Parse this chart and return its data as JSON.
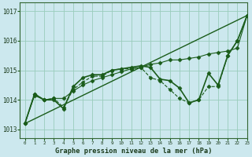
{
  "title": "Graphe pression niveau de la mer (hPa)",
  "xlim": [
    -0.5,
    23
  ],
  "ylim": [
    1012.7,
    1017.3
  ],
  "yticks": [
    1013,
    1014,
    1015,
    1016,
    1017
  ],
  "xticks": [
    0,
    1,
    2,
    3,
    4,
    5,
    6,
    7,
    8,
    9,
    10,
    11,
    12,
    13,
    14,
    15,
    16,
    17,
    18,
    19,
    20,
    21,
    22,
    23
  ],
  "bg_color": "#cce8ee",
  "grid_color": "#99ccbb",
  "line_color": "#1a5c1a",
  "series": [
    {
      "x": [
        0,
        23
      ],
      "y": [
        1013.2,
        1016.85
      ],
      "lw": 1.0,
      "ls": "-",
      "marker": null
    },
    {
      "x": [
        0,
        1,
        2,
        3,
        4,
        5,
        6,
        7,
        8,
        9,
        10,
        11,
        12,
        13,
        14,
        15,
        16,
        17,
        18,
        19,
        20,
        21,
        22,
        23
      ],
      "y": [
        1013.2,
        1014.2,
        1014.0,
        1014.0,
        1013.7,
        1014.45,
        1014.75,
        1014.85,
        1014.85,
        1015.0,
        1015.05,
        1015.1,
        1015.15,
        1015.1,
        1014.7,
        1014.65,
        1014.4,
        1013.9,
        1014.0,
        1014.9,
        1014.5,
        1015.5,
        1016.0,
        1016.85
      ],
      "lw": 1.2,
      "ls": "-",
      "marker": "D"
    },
    {
      "x": [
        0,
        1,
        2,
        3,
        4,
        5,
        6,
        7,
        8,
        9,
        10,
        11,
        12,
        13,
        14,
        15,
        16,
        17,
        18,
        19,
        20,
        21,
        22,
        23
      ],
      "y": [
        1013.2,
        1014.15,
        1014.0,
        1014.05,
        1014.05,
        1014.3,
        1014.5,
        1014.65,
        1014.75,
        1014.85,
        1014.95,
        1015.05,
        1015.1,
        1015.2,
        1015.25,
        1015.35,
        1015.35,
        1015.4,
        1015.45,
        1015.55,
        1015.6,
        1015.65,
        1015.75,
        1016.85
      ],
      "lw": 0.8,
      "ls": "-",
      "marker": "D"
    },
    {
      "x": [
        0,
        1,
        2,
        3,
        4,
        5,
        6,
        7,
        8,
        9,
        10,
        11,
        12,
        13,
        14,
        15,
        16,
        17,
        18,
        19,
        20,
        21,
        22,
        23
      ],
      "y": [
        1013.2,
        1014.2,
        1014.0,
        1014.05,
        1013.75,
        1014.35,
        1014.6,
        1014.8,
        1014.8,
        1015.0,
        1015.05,
        1015.05,
        1015.1,
        1014.75,
        1014.65,
        1014.35,
        1014.05,
        1013.9,
        1014.0,
        1014.45,
        1014.45,
        1015.5,
        1016.0,
        1016.85
      ],
      "lw": 0.8,
      "ls": "--",
      "marker": "D"
    }
  ],
  "markersize": 2.5
}
